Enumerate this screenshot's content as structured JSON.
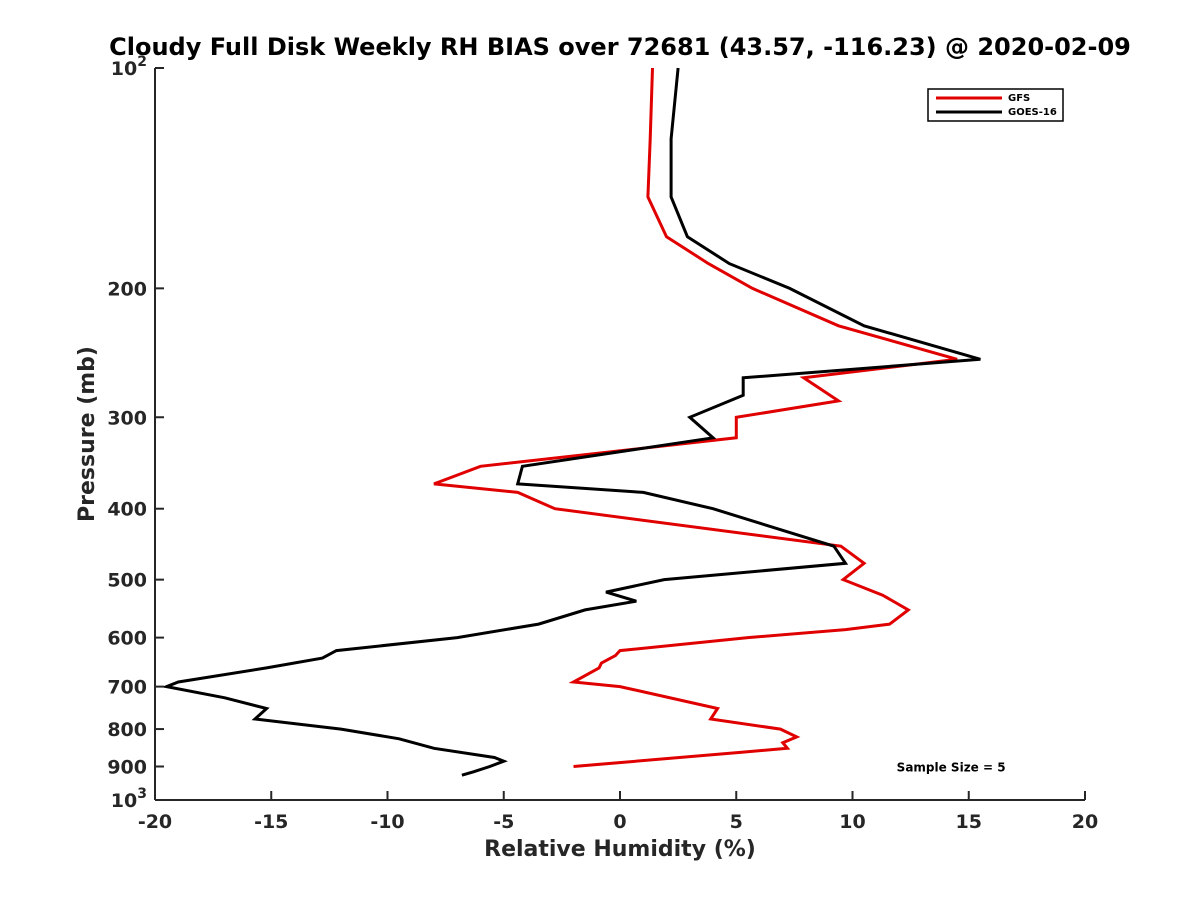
{
  "chart_data": {
    "type": "line",
    "title": "Cloudy Full Disk Weekly RH BIAS over 72681 (43.57, -116.23) @ 2020-02-09",
    "xlabel": "Relative Humidity (%)",
    "ylabel": "Pressure (mb)",
    "xlim": [
      -20,
      20
    ],
    "ylim": [
      100,
      1000
    ],
    "y_scale": "log",
    "y_reversed": true,
    "grid": false,
    "legend_position": "top-right",
    "x_ticks": [
      {
        "value": -20,
        "label": "-20"
      },
      {
        "value": -15,
        "label": "-15"
      },
      {
        "value": -10,
        "label": "-10"
      },
      {
        "value": -5,
        "label": "-5"
      },
      {
        "value": 0,
        "label": "0"
      },
      {
        "value": 5,
        "label": "5"
      },
      {
        "value": 10,
        "label": "10"
      },
      {
        "value": 15,
        "label": "15"
      },
      {
        "value": 20,
        "label": "20"
      }
    ],
    "y_ticks": [
      {
        "value": 100,
        "base": "10",
        "exp": "2"
      },
      {
        "value": 200,
        "base": "200",
        "exp": ""
      },
      {
        "value": 300,
        "base": "300",
        "exp": ""
      },
      {
        "value": 400,
        "base": "400",
        "exp": ""
      },
      {
        "value": 500,
        "base": "500",
        "exp": ""
      },
      {
        "value": 600,
        "base": "600",
        "exp": ""
      },
      {
        "value": 700,
        "base": "700",
        "exp": ""
      },
      {
        "value": 800,
        "base": "800",
        "exp": ""
      },
      {
        "value": 900,
        "base": "900",
        "exp": ""
      },
      {
        "value": 1000,
        "base": "10",
        "exp": "3"
      }
    ],
    "series": [
      {
        "name": "GFS",
        "color": "#e00000",
        "points": [
          [
            1.4,
            100
          ],
          [
            1.3,
            125
          ],
          [
            1.2,
            150
          ],
          [
            2.0,
            170
          ],
          [
            3.8,
            185
          ],
          [
            5.7,
            200
          ],
          [
            9.4,
            225
          ],
          [
            14.5,
            250
          ],
          [
            7.9,
            265
          ],
          [
            9.4,
            285
          ],
          [
            5.0,
            300
          ],
          [
            5.0,
            320
          ],
          [
            -6.0,
            350
          ],
          [
            -8.0,
            370
          ],
          [
            -4.4,
            380
          ],
          [
            -2.8,
            400
          ],
          [
            9.5,
            450
          ],
          [
            10.5,
            475
          ],
          [
            9.6,
            500
          ],
          [
            11.3,
            525
          ],
          [
            12.4,
            550
          ],
          [
            11.6,
            575
          ],
          [
            9.7,
            585
          ],
          [
            5.5,
            600
          ],
          [
            0.0,
            625
          ],
          [
            -0.2,
            635
          ],
          [
            -0.8,
            650
          ],
          [
            -0.9,
            660
          ],
          [
            -2.0,
            690
          ],
          [
            0.0,
            700
          ],
          [
            4.2,
            750
          ],
          [
            3.9,
            775
          ],
          [
            6.9,
            800
          ],
          [
            7.6,
            820
          ],
          [
            7.0,
            835
          ],
          [
            7.2,
            850
          ],
          [
            5.3,
            860
          ],
          [
            -2.0,
            900
          ]
        ]
      },
      {
        "name": "GOES-16",
        "color": "#000000",
        "points": [
          [
            2.5,
            100
          ],
          [
            2.2,
            125
          ],
          [
            2.2,
            150
          ],
          [
            2.9,
            170
          ],
          [
            4.7,
            185
          ],
          [
            7.3,
            200
          ],
          [
            10.5,
            225
          ],
          [
            15.5,
            250
          ],
          [
            5.3,
            265
          ],
          [
            5.3,
            280
          ],
          [
            3.0,
            300
          ],
          [
            4.0,
            320
          ],
          [
            -4.2,
            350
          ],
          [
            -4.4,
            370
          ],
          [
            1.0,
            380
          ],
          [
            4.0,
            400
          ],
          [
            9.2,
            450
          ],
          [
            9.7,
            475
          ],
          [
            1.9,
            500
          ],
          [
            -0.6,
            520
          ],
          [
            0.7,
            535
          ],
          [
            -1.5,
            550
          ],
          [
            -3.5,
            575
          ],
          [
            -7.0,
            600
          ],
          [
            -12.2,
            625
          ],
          [
            -12.8,
            640
          ],
          [
            -15.2,
            660
          ],
          [
            -19.0,
            690
          ],
          [
            -19.5,
            700
          ],
          [
            -17.0,
            725
          ],
          [
            -15.2,
            750
          ],
          [
            -15.7,
            775
          ],
          [
            -12.0,
            800
          ],
          [
            -9.5,
            825
          ],
          [
            -8.0,
            850
          ],
          [
            -5.4,
            875
          ],
          [
            -5.0,
            885
          ],
          [
            -5.6,
            900
          ],
          [
            -6.3,
            915
          ],
          [
            -6.8,
            925
          ]
        ]
      }
    ],
    "annotations": [
      {
        "text": "Sample Size = 5",
        "x": 14.5,
        "y": 900
      }
    ]
  }
}
